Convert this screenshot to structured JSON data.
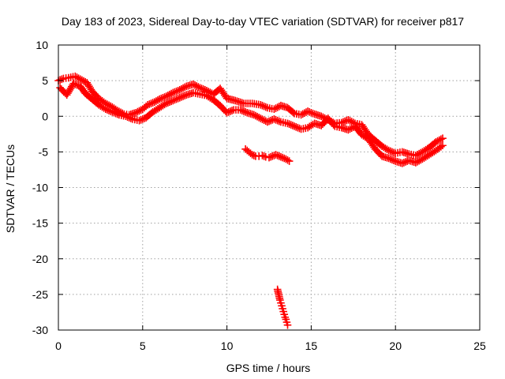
{
  "chart_data": {
    "type": "scatter",
    "title": "Day 183 of 2023, Sidereal Day-to-day VTEC variation (SDTVAR) for receiver p817",
    "xlabel": "GPS time / hours",
    "ylabel": "SDTVAR / TECUs",
    "xlim": [
      0,
      25
    ],
    "ylim": [
      -30,
      10
    ],
    "xticks": [
      0,
      5,
      10,
      15,
      20,
      25
    ],
    "yticks": [
      -30,
      -25,
      -20,
      -15,
      -10,
      -5,
      0,
      5,
      10
    ],
    "xtick_labels": [
      "0",
      "5",
      "10",
      "15",
      "20",
      "25"
    ],
    "ytick_labels": [
      "-30",
      "-25",
      "-20",
      "-15",
      "-10",
      "-5",
      "0",
      "5",
      "10"
    ],
    "grid": true,
    "marker": "plus",
    "color": "#ff0000",
    "series": [
      {
        "name": "main-track-upper",
        "x": [
          0.0,
          0.3,
          0.6,
          1.0,
          1.3,
          1.7,
          2.0,
          2.4,
          2.8,
          3.2,
          3.5,
          3.9,
          4.2,
          4.6,
          5.0,
          5.3,
          5.7,
          6.0,
          6.4,
          6.8,
          7.2,
          7.6,
          8.0,
          8.4,
          8.8,
          9.2,
          9.6,
          10.0,
          10.5,
          11.0,
          11.5,
          12.0,
          12.4,
          12.8,
          13.2,
          13.6,
          14.0,
          14.4,
          14.8,
          15.2,
          15.6,
          16.0,
          16.4,
          16.8,
          17.2,
          17.6,
          18.0,
          18.4,
          18.8,
          19.2,
          19.6,
          20.0,
          20.4,
          20.8,
          21.2,
          21.6,
          22.0,
          22.4,
          22.8
        ],
        "y": [
          5.0,
          5.3,
          5.4,
          5.6,
          5.2,
          4.7,
          3.5,
          2.5,
          1.8,
          1.3,
          0.8,
          0.3,
          0.2,
          0.5,
          1.0,
          1.6,
          2.0,
          2.4,
          2.8,
          3.3,
          3.7,
          4.2,
          4.5,
          4.0,
          3.6,
          3.1,
          3.9,
          2.5,
          2.2,
          1.8,
          1.8,
          1.6,
          1.2,
          1.0,
          1.5,
          1.2,
          0.4,
          0.2,
          0.7,
          0.3,
          0.0,
          -0.5,
          -1.0,
          -0.9,
          -0.5,
          -1.0,
          -1.2,
          -2.6,
          -3.4,
          -4.2,
          -4.8,
          -5.2,
          -5.0,
          -5.3,
          -5.5,
          -5.0,
          -4.4,
          -3.6,
          -3.1
        ]
      },
      {
        "name": "main-track-lower",
        "x": [
          0.1,
          0.5,
          0.9,
          1.3,
          1.6,
          2.0,
          2.4,
          2.8,
          3.2,
          3.6,
          4.0,
          4.4,
          4.8,
          5.2,
          5.6,
          6.0,
          6.4,
          6.8,
          7.2,
          7.6,
          8.0,
          8.4,
          8.8,
          9.2,
          9.6,
          10.0,
          10.4,
          10.8,
          11.2,
          11.6,
          12.0,
          12.4,
          12.8,
          13.2,
          13.6,
          14.0,
          14.4,
          14.8,
          15.2,
          15.6,
          16.0,
          16.4,
          16.8,
          17.2,
          17.6,
          18.0,
          18.4,
          18.8,
          19.2,
          19.6,
          20.0,
          20.4,
          20.8,
          21.2,
          21.6,
          22.0,
          22.4,
          22.8
        ],
        "y": [
          4.0,
          3.0,
          4.6,
          4.2,
          3.2,
          2.4,
          1.6,
          1.0,
          0.6,
          0.2,
          0.0,
          -0.4,
          -0.6,
          -0.2,
          0.6,
          1.2,
          1.8,
          2.2,
          2.6,
          3.0,
          3.3,
          3.1,
          2.9,
          2.3,
          1.5,
          0.5,
          0.9,
          0.9,
          0.5,
          0.2,
          -0.3,
          -0.8,
          -0.4,
          -0.8,
          -1.0,
          -1.4,
          -1.8,
          -1.6,
          -1.0,
          -1.3,
          -0.3,
          -1.4,
          -1.6,
          -1.9,
          -1.4,
          -2.6,
          -3.2,
          -4.6,
          -5.6,
          -5.9,
          -6.3,
          -6.6,
          -6.2,
          -6.5,
          -6.0,
          -5.4,
          -4.8,
          -4.1
        ]
      },
      {
        "name": "isolated-segment",
        "x": [
          11.1,
          11.3,
          11.5,
          11.7,
          11.9,
          12.1,
          12.3,
          12.5,
          12.7,
          12.9,
          13.1,
          13.3,
          13.5,
          13.7
        ],
        "y": [
          -4.6,
          -5.0,
          -5.4,
          -5.6,
          -5.6,
          -5.5,
          -5.7,
          -5.8,
          -5.6,
          -5.4,
          -5.6,
          -5.8,
          -6.0,
          -6.3
        ]
      },
      {
        "name": "outlier-segment",
        "x": [
          13.0,
          13.05,
          13.1,
          13.15,
          13.2,
          13.25,
          13.3,
          13.35,
          13.4,
          13.45,
          13.5,
          13.55,
          13.6
        ],
        "y": [
          -24.3,
          -24.8,
          -25.3,
          -25.8,
          -26.2,
          -26.6,
          -27.0,
          -27.4,
          -27.8,
          -28.2,
          -28.5,
          -28.9,
          -29.3
        ]
      }
    ]
  }
}
